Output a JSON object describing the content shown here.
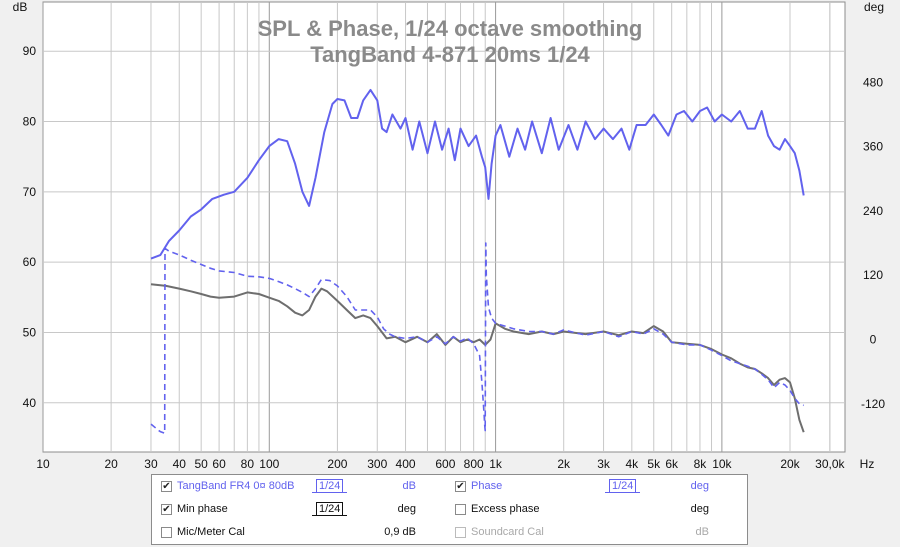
{
  "chart_data": {
    "type": "line",
    "title": "SPL & Phase, 1/24 octave smoothing",
    "subtitle": "TangBand 4-871 20ms 1/24",
    "x_axis": {
      "scale": "log",
      "range": [
        10,
        35000
      ],
      "unit": "Hz",
      "tick_labels": [
        {
          "v": 10,
          "t": "10"
        },
        {
          "v": 20,
          "t": "20"
        },
        {
          "v": 30,
          "t": "30"
        },
        {
          "v": 40,
          "t": "40"
        },
        {
          "v": 50,
          "t": "50"
        },
        {
          "v": 60,
          "t": "60"
        },
        {
          "v": 80,
          "t": "80"
        },
        {
          "v": 100,
          "t": "100"
        },
        {
          "v": 200,
          "t": "200"
        },
        {
          "v": 300,
          "t": "300"
        },
        {
          "v": 400,
          "t": "400"
        },
        {
          "v": 600,
          "t": "600"
        },
        {
          "v": 800,
          "t": "800"
        },
        {
          "v": 1000,
          "t": "1k"
        },
        {
          "v": 2000,
          "t": "2k"
        },
        {
          "v": 3000,
          "t": "3k"
        },
        {
          "v": 4000,
          "t": "4k"
        },
        {
          "v": 5000,
          "t": "5k"
        },
        {
          "v": 6000,
          "t": "6k"
        },
        {
          "v": 8000,
          "t": "8k"
        },
        {
          "v": 10000,
          "t": "10k"
        },
        {
          "v": 20000,
          "t": "20k"
        },
        {
          "v": 30000,
          "t": "30,0k"
        }
      ]
    },
    "y_left": {
      "unit": "dB",
      "range": [
        33,
        97
      ],
      "ticks": [
        40,
        50,
        60,
        70,
        80,
        90
      ]
    },
    "y_right": {
      "unit": "deg",
      "range": [
        -210,
        630
      ],
      "ticks": [
        -120,
        0,
        120,
        240,
        360,
        480
      ]
    },
    "grid": true,
    "series": [
      {
        "name": "TangBand FR4 0¤ 80dB",
        "axis": "left",
        "color": "#6262ee",
        "style": "solid",
        "points": [
          [
            30,
            60.5
          ],
          [
            33,
            61
          ],
          [
            36,
            63
          ],
          [
            40,
            64.5
          ],
          [
            45,
            66.5
          ],
          [
            50,
            67.5
          ],
          [
            56,
            69
          ],
          [
            63,
            69.6
          ],
          [
            70,
            70
          ],
          [
            80,
            72
          ],
          [
            90,
            74.5
          ],
          [
            100,
            76.5
          ],
          [
            110,
            77.5
          ],
          [
            120,
            77.2
          ],
          [
            130,
            74
          ],
          [
            140,
            70
          ],
          [
            150,
            68
          ],
          [
            160,
            72
          ],
          [
            175,
            78.5
          ],
          [
            190,
            82.5
          ],
          [
            200,
            83.2
          ],
          [
            215,
            83
          ],
          [
            230,
            80.5
          ],
          [
            245,
            80.5
          ],
          [
            260,
            83
          ],
          [
            280,
            84.5
          ],
          [
            300,
            83
          ],
          [
            315,
            79
          ],
          [
            330,
            78.5
          ],
          [
            350,
            81
          ],
          [
            380,
            79
          ],
          [
            400,
            80.5
          ],
          [
            430,
            76
          ],
          [
            460,
            80
          ],
          [
            500,
            75.5
          ],
          [
            540,
            80
          ],
          [
            580,
            76
          ],
          [
            620,
            79
          ],
          [
            660,
            74.5
          ],
          [
            700,
            79
          ],
          [
            760,
            76.5
          ],
          [
            820,
            78
          ],
          [
            870,
            75
          ],
          [
            900,
            73.5
          ],
          [
            930,
            69
          ],
          [
            960,
            74
          ],
          [
            1000,
            78
          ],
          [
            1050,
            79.5
          ],
          [
            1150,
            75
          ],
          [
            1250,
            79
          ],
          [
            1350,
            76
          ],
          [
            1450,
            80
          ],
          [
            1600,
            75.5
          ],
          [
            1750,
            80.5
          ],
          [
            1900,
            76
          ],
          [
            2100,
            79.5
          ],
          [
            2300,
            76
          ],
          [
            2500,
            80
          ],
          [
            2750,
            77.5
          ],
          [
            3000,
            79
          ],
          [
            3300,
            77.5
          ],
          [
            3600,
            79
          ],
          [
            3900,
            76
          ],
          [
            4200,
            79.5
          ],
          [
            4600,
            79.5
          ],
          [
            5000,
            81
          ],
          [
            5400,
            79.5
          ],
          [
            5800,
            78
          ],
          [
            6300,
            81
          ],
          [
            6800,
            81.5
          ],
          [
            7400,
            80
          ],
          [
            8000,
            81.5
          ],
          [
            8600,
            82
          ],
          [
            9300,
            80
          ],
          [
            10000,
            81
          ],
          [
            11000,
            80
          ],
          [
            12000,
            81.5
          ],
          [
            13000,
            79
          ],
          [
            14000,
            79
          ],
          [
            15000,
            81.5
          ],
          [
            16000,
            78
          ],
          [
            17000,
            76.5
          ],
          [
            18000,
            76
          ],
          [
            19000,
            77.5
          ],
          [
            20000,
            76.5
          ],
          [
            21000,
            75.5
          ],
          [
            22000,
            73
          ],
          [
            23000,
            69.5
          ]
        ]
      },
      {
        "name": "Phase",
        "axis": "right",
        "color": "#6262ee",
        "style": "dashed",
        "points": [
          [
            30,
            -158
          ],
          [
            32.5,
            -170
          ],
          [
            33,
            -172
          ],
          [
            34.5,
            -175
          ],
          [
            34.6,
            170
          ],
          [
            36,
            165
          ],
          [
            40,
            158
          ],
          [
            45,
            148
          ],
          [
            50,
            140
          ],
          [
            55,
            133
          ],
          [
            60,
            128
          ],
          [
            70,
            125
          ],
          [
            80,
            118
          ],
          [
            90,
            117
          ],
          [
            100,
            114
          ],
          [
            110,
            108
          ],
          [
            120,
            102
          ],
          [
            130,
            95
          ],
          [
            140,
            88
          ],
          [
            150,
            80
          ],
          [
            160,
            95
          ],
          [
            170,
            112
          ],
          [
            185,
            110
          ],
          [
            200,
            100
          ],
          [
            220,
            80
          ],
          [
            240,
            55
          ],
          [
            260,
            55
          ],
          [
            280,
            55
          ],
          [
            300,
            42
          ],
          [
            320,
            20
          ],
          [
            340,
            10
          ],
          [
            360,
            5
          ],
          [
            400,
            2
          ],
          [
            450,
            5
          ],
          [
            500,
            -5
          ],
          [
            550,
            5
          ],
          [
            600,
            -8
          ],
          [
            650,
            5
          ],
          [
            700,
            -3
          ],
          [
            750,
            3
          ],
          [
            800,
            -8
          ],
          [
            850,
            -30
          ],
          [
            870,
            -80
          ],
          [
            890,
            -140
          ],
          [
            895,
            -160
          ],
          [
            900,
            -170
          ],
          [
            905,
            180
          ],
          [
            910,
            120
          ],
          [
            930,
            60
          ],
          [
            960,
            40
          ],
          [
            1000,
            30
          ],
          [
            1100,
            25
          ],
          [
            1200,
            20
          ],
          [
            1400,
            15
          ],
          [
            1600,
            15
          ],
          [
            1800,
            10
          ],
          [
            2000,
            18
          ],
          [
            2500,
            8
          ],
          [
            3000,
            15
          ],
          [
            3500,
            5
          ],
          [
            4000,
            15
          ],
          [
            4500,
            10
          ],
          [
            5000,
            20
          ],
          [
            5500,
            10
          ],
          [
            6000,
            -5
          ],
          [
            7000,
            -10
          ],
          [
            8000,
            -10
          ],
          [
            9000,
            -20
          ],
          [
            10000,
            -30
          ],
          [
            11000,
            -40
          ],
          [
            12000,
            -45
          ],
          [
            13000,
            -50
          ],
          [
            14000,
            -55
          ],
          [
            15000,
            -65
          ],
          [
            16000,
            -75
          ],
          [
            17000,
            -90
          ],
          [
            18000,
            -80
          ],
          [
            19000,
            -85
          ],
          [
            20000,
            -95
          ],
          [
            21000,
            -110
          ],
          [
            22000,
            -120
          ],
          [
            23000,
            -123
          ]
        ]
      },
      {
        "name": "Min phase",
        "axis": "right",
        "color": "#6e6e6e",
        "style": "solid",
        "points": [
          [
            30,
            103
          ],
          [
            35,
            100
          ],
          [
            40,
            95
          ],
          [
            45,
            90
          ],
          [
            50,
            85
          ],
          [
            55,
            80
          ],
          [
            60,
            78
          ],
          [
            70,
            80
          ],
          [
            80,
            88
          ],
          [
            90,
            85
          ],
          [
            100,
            78
          ],
          [
            110,
            72
          ],
          [
            120,
            62
          ],
          [
            130,
            50
          ],
          [
            140,
            45
          ],
          [
            150,
            55
          ],
          [
            160,
            80
          ],
          [
            170,
            95
          ],
          [
            180,
            90
          ],
          [
            200,
            72
          ],
          [
            220,
            55
          ],
          [
            240,
            40
          ],
          [
            260,
            45
          ],
          [
            280,
            40
          ],
          [
            300,
            25
          ],
          [
            330,
            2
          ],
          [
            360,
            5
          ],
          [
            400,
            -5
          ],
          [
            450,
            5
          ],
          [
            500,
            -5
          ],
          [
            550,
            10
          ],
          [
            600,
            -10
          ],
          [
            650,
            5
          ],
          [
            700,
            -5
          ],
          [
            750,
            0
          ],
          [
            800,
            -5
          ],
          [
            850,
            0
          ],
          [
            900,
            -10
          ],
          [
            950,
            0
          ],
          [
            1000,
            30
          ],
          [
            1100,
            20
          ],
          [
            1200,
            15
          ],
          [
            1400,
            10
          ],
          [
            1600,
            15
          ],
          [
            1800,
            10
          ],
          [
            2000,
            15
          ],
          [
            2500,
            10
          ],
          [
            3000,
            15
          ],
          [
            3500,
            8
          ],
          [
            4000,
            15
          ],
          [
            4500,
            12
          ],
          [
            5000,
            25
          ],
          [
            5500,
            15
          ],
          [
            6000,
            -5
          ],
          [
            7000,
            -8
          ],
          [
            8000,
            -10
          ],
          [
            9000,
            -18
          ],
          [
            10000,
            -28
          ],
          [
            11000,
            -35
          ],
          [
            12000,
            -45
          ],
          [
            13000,
            -52
          ],
          [
            14000,
            -55
          ],
          [
            15000,
            -63
          ],
          [
            16000,
            -72
          ],
          [
            17000,
            -85
          ],
          [
            18000,
            -75
          ],
          [
            19000,
            -72
          ],
          [
            20000,
            -80
          ],
          [
            21000,
            -110
          ],
          [
            22000,
            -150
          ],
          [
            23000,
            -173
          ]
        ]
      }
    ]
  },
  "legend": {
    "rows": [
      [
        {
          "checked": true,
          "label": "TangBand FR4 0¤ 80dB",
          "color": "blue",
          "smoothing": "1/24",
          "unit": "dB"
        },
        {
          "checked": true,
          "label": "Phase",
          "color": "blue",
          "smoothing": "1/24",
          "unit": "deg"
        }
      ],
      [
        {
          "checked": true,
          "label": "Min phase",
          "color": "black",
          "smoothing": "1/24",
          "unit": "deg"
        },
        {
          "checked": false,
          "label": "Excess phase",
          "color": "black",
          "unit": "deg"
        }
      ],
      [
        {
          "checked": false,
          "label": "Mic/Meter Cal",
          "color": "black",
          "unit": "0,9 dB"
        },
        {
          "checked": false,
          "label": "Soundcard Cal",
          "color": "grey",
          "unit": "dB",
          "disabled": true
        }
      ]
    ]
  }
}
